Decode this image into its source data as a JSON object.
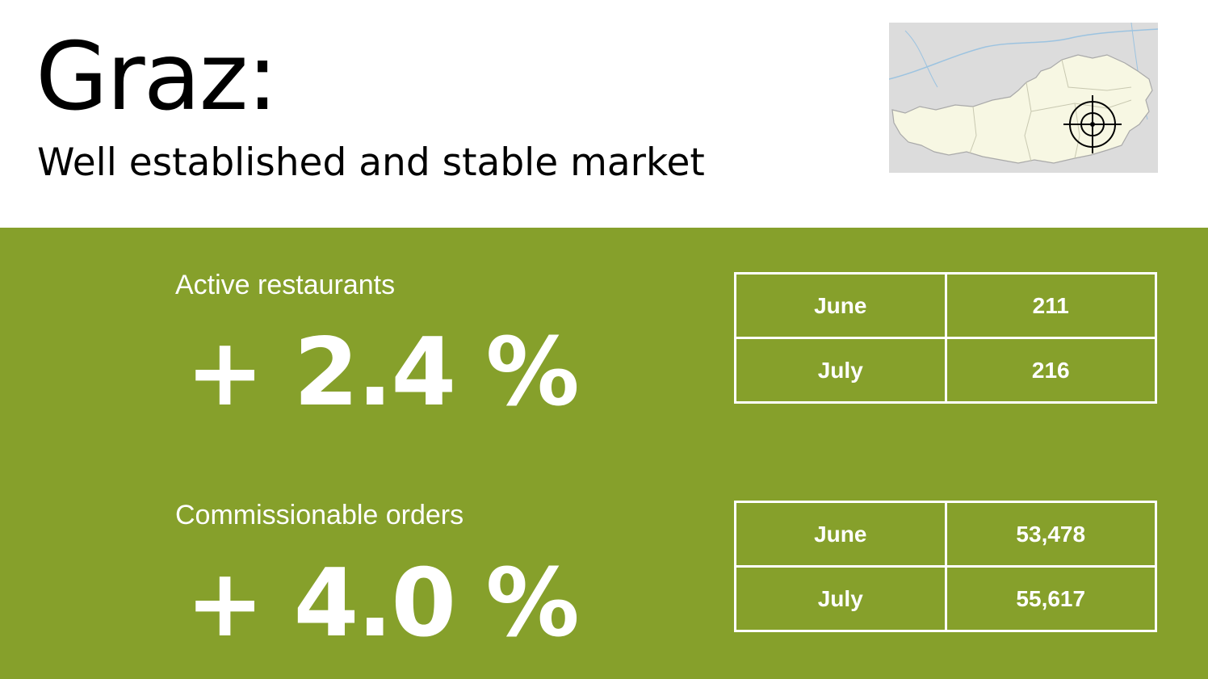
{
  "header": {
    "title": "Graz:",
    "subtitle": "Well established and stable market"
  },
  "map": {
    "icon": "austria-map-with-target-marker",
    "marker_icon": "crosshair-target-icon",
    "colors": {
      "land": "#f7f7e3",
      "surrounding": "#dcdcdc",
      "water": "#9cc3e0"
    }
  },
  "metrics": [
    {
      "label": "Active restaurants",
      "value": "+ 2.4 %",
      "rows": [
        {
          "month": "June",
          "value": "211"
        },
        {
          "month": "July",
          "value": "216"
        }
      ]
    },
    {
      "label": "Commissionable orders",
      "value": "+ 4.0 %",
      "rows": [
        {
          "month": "June",
          "value": "53,478"
        },
        {
          "month": "July",
          "value": "55,617"
        }
      ]
    }
  ],
  "colors": {
    "band": "#86a02b",
    "text_on_band": "#ffffff"
  }
}
